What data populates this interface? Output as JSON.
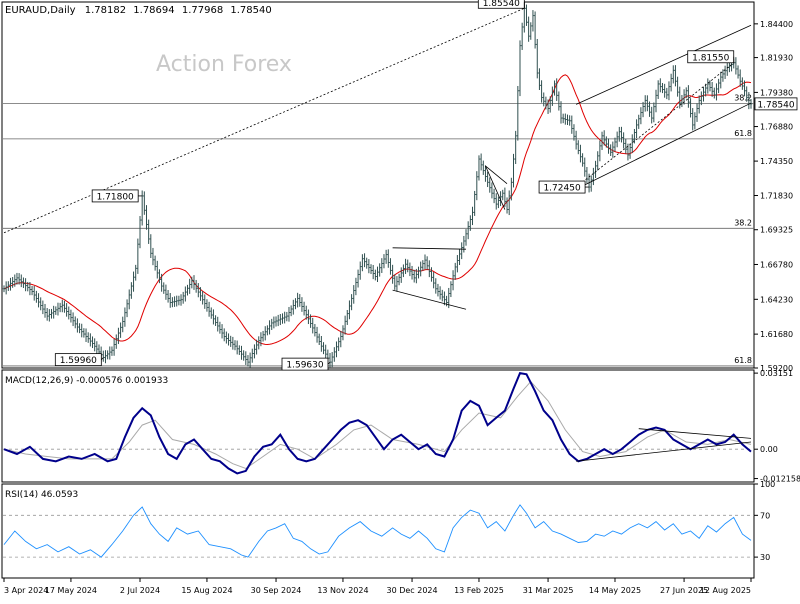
{
  "chart_data": {
    "type": "candlestick",
    "symbol": "EURAUD",
    "timeframe": "Daily",
    "ohlc": {
      "open": "1.78182",
      "high": "1.78694",
      "low": "1.77968",
      "close": "1.78540"
    },
    "watermark": "Action Forex",
    "current_price_label": "1.78540",
    "price_axis": {
      "range": [
        1.592,
        1.86
      ],
      "ticks": [
        "1.84400",
        "1.81930",
        "1.79380",
        "1.76880",
        "1.74350",
        "1.71830",
        "1.69325",
        "1.66780",
        "1.64230",
        "1.61680",
        "1.59200"
      ]
    },
    "dates": [
      "3 Apr 2024",
      "17 May 2024",
      "2 Jul 2024",
      "15 Aug 2024",
      "30 Sep 2024",
      "13 Nov 2024",
      "30 Dec 2024",
      "13 Feb 2025",
      "31 Mar 2025",
      "14 May 2025",
      "27 Jun 2025",
      "12 Aug 2025"
    ],
    "price_points": [
      [
        0,
        1.65
      ],
      [
        6,
        1.658
      ],
      [
        13,
        1.648
      ],
      [
        20,
        1.63
      ],
      [
        27,
        1.638
      ],
      [
        34,
        1.622
      ],
      [
        41,
        1.61
      ],
      [
        46,
        1.5996
      ],
      [
        50,
        1.605
      ],
      [
        55,
        1.626
      ],
      [
        61,
        1.665
      ],
      [
        64,
        1.718
      ],
      [
        68,
        1.676
      ],
      [
        73,
        1.652
      ],
      [
        77,
        1.64
      ],
      [
        82,
        1.642
      ],
      [
        87,
        1.656
      ],
      [
        92,
        1.642
      ],
      [
        97,
        1.628
      ],
      [
        102,
        1.615
      ],
      [
        107,
        1.608
      ],
      [
        113,
        1.5963
      ],
      [
        118,
        1.612
      ],
      [
        124,
        1.625
      ],
      [
        131,
        1.63
      ],
      [
        136,
        1.643
      ],
      [
        141,
        1.628
      ],
      [
        147,
        1.608
      ],
      [
        151,
        1.5963
      ],
      [
        156,
        1.615
      ],
      [
        161,
        1.643
      ],
      [
        166,
        1.672
      ],
      [
        172,
        1.659
      ],
      [
        177,
        1.675
      ],
      [
        181,
        1.652
      ],
      [
        186,
        1.668
      ],
      [
        190,
        1.658
      ],
      [
        195,
        1.671
      ],
      [
        200,
        1.65
      ],
      [
        205,
        1.64
      ],
      [
        209,
        1.666
      ],
      [
        213,
        1.685
      ],
      [
        217,
        1.706
      ],
      [
        220,
        1.745
      ],
      [
        224,
        1.728
      ],
      [
        228,
        1.712
      ],
      [
        231,
        1.72
      ],
      [
        233,
        1.708
      ],
      [
        235,
        1.728
      ],
      [
        237,
        1.762
      ],
      [
        239,
        1.828
      ],
      [
        241,
        1.8554
      ],
      [
        243,
        1.835
      ],
      [
        245,
        1.85
      ],
      [
        247,
        1.808
      ],
      [
        249,
        1.79
      ],
      [
        252,
        1.782
      ],
      [
        255,
        1.8
      ],
      [
        258,
        1.775
      ],
      [
        262,
        1.773
      ],
      [
        265,
        1.756
      ],
      [
        268,
        1.742
      ],
      [
        271,
        1.7245
      ],
      [
        274,
        1.74
      ],
      [
        277,
        1.762
      ],
      [
        281,
        1.75
      ],
      [
        285,
        1.765
      ],
      [
        289,
        1.748
      ],
      [
        293,
        1.77
      ],
      [
        297,
        1.788
      ],
      [
        300,
        1.775
      ],
      [
        303,
        1.8
      ],
      [
        307,
        1.792
      ],
      [
        310,
        1.81
      ],
      [
        313,
        1.786
      ],
      [
        316,
        1.795
      ],
      [
        319,
        1.77
      ],
      [
        322,
        1.788
      ],
      [
        326,
        1.8
      ],
      [
        329,
        1.792
      ],
      [
        332,
        1.805
      ],
      [
        335,
        1.812
      ],
      [
        338,
        1.8155
      ],
      [
        341,
        1.802
      ],
      [
        343,
        1.795
      ],
      [
        345,
        1.7854
      ]
    ],
    "price_labels": [
      {
        "text": "1.85540",
        "i": 241,
        "price": 1.8554,
        "pos": "left-above"
      },
      {
        "text": "1.81550",
        "i": 338,
        "price": 1.8155,
        "pos": "left-above"
      },
      {
        "text": "1.71800",
        "i": 64,
        "price": 1.718,
        "pos": "left"
      },
      {
        "text": "1.72450",
        "i": 271,
        "price": 1.7245,
        "pos": "left"
      },
      {
        "text": "1.59960",
        "i": 46,
        "price": 1.5996,
        "pos": "left-below"
      },
      {
        "text": "1.59630",
        "i": 151,
        "price": 1.5963,
        "pos": "left-below"
      }
    ],
    "fib_levels": [
      {
        "label": "38.2",
        "price": 1.6943
      },
      {
        "label": "61.8",
        "price": 1.7598
      },
      {
        "label": "38.2",
        "price": 1.7857
      },
      {
        "label": "61.8",
        "price": 1.5935
      }
    ],
    "trendlines": [
      {
        "from": [
          0,
          1.691
        ],
        "to": [
          241,
          1.8554
        ],
        "dashed": true
      },
      {
        "from": [
          180,
          1.68
        ],
        "to": [
          214,
          1.679
        ],
        "dashed": false
      },
      {
        "from": [
          180,
          1.649
        ],
        "to": [
          214,
          1.635
        ],
        "dashed": false
      },
      {
        "from": [
          223,
          1.74
        ],
        "to": [
          232,
          1.708
        ],
        "dashed": false
      },
      {
        "from": [
          223,
          1.74
        ],
        "to": [
          233,
          1.727
        ],
        "dashed": false
      },
      {
        "from": [
          265,
          1.785
        ],
        "to": [
          346,
          1.843
        ],
        "dashed": false
      },
      {
        "from": [
          265,
          1.723
        ],
        "to": [
          346,
          1.786
        ],
        "dashed": false
      },
      {
        "from": [
          265,
          1.7245
        ],
        "to": [
          338,
          1.8155
        ],
        "dashed": true
      }
    ],
    "macd": {
      "label": "MACD(12,26,9) -0.000576 0.001933",
      "range": [
        -0.01358,
        0.0328
      ],
      "ticks": [
        "0.03151",
        "0.00",
        "-0.012158"
      ],
      "values": [
        [
          0,
          0.0
        ],
        [
          6,
          -0.002
        ],
        [
          12,
          0.001
        ],
        [
          18,
          -0.004
        ],
        [
          24,
          -0.005
        ],
        [
          30,
          -0.003
        ],
        [
          36,
          -0.004
        ],
        [
          42,
          -0.002
        ],
        [
          48,
          -0.005
        ],
        [
          52,
          -0.004
        ],
        [
          56,
          0.005
        ],
        [
          60,
          0.013
        ],
        [
          64,
          0.017
        ],
        [
          68,
          0.014
        ],
        [
          72,
          0.005
        ],
        [
          76,
          -0.002
        ],
        [
          80,
          -0.004
        ],
        [
          84,
          0.002
        ],
        [
          88,
          0.004
        ],
        [
          92,
          0.0
        ],
        [
          96,
          -0.004
        ],
        [
          100,
          -0.005
        ],
        [
          104,
          -0.008
        ],
        [
          108,
          -0.01
        ],
        [
          112,
          -0.009
        ],
        [
          116,
          -0.003
        ],
        [
          120,
          0.001
        ],
        [
          124,
          0.002
        ],
        [
          128,
          0.006
        ],
        [
          132,
          0.0
        ],
        [
          136,
          -0.004
        ],
        [
          140,
          -0.005
        ],
        [
          144,
          -0.004
        ],
        [
          148,
          0.0
        ],
        [
          152,
          0.004
        ],
        [
          156,
          0.008
        ],
        [
          160,
          0.011
        ],
        [
          164,
          0.012
        ],
        [
          168,
          0.01
        ],
        [
          172,
          0.005
        ],
        [
          176,
          0.0
        ],
        [
          180,
          0.004
        ],
        [
          184,
          0.006
        ],
        [
          188,
          0.003
        ],
        [
          192,
          0.0
        ],
        [
          196,
          0.002
        ],
        [
          200,
          -0.002
        ],
        [
          204,
          -0.003
        ],
        [
          208,
          0.004
        ],
        [
          212,
          0.016
        ],
        [
          216,
          0.02
        ],
        [
          220,
          0.018
        ],
        [
          224,
          0.01
        ],
        [
          228,
          0.013
        ],
        [
          232,
          0.016
        ],
        [
          236,
          0.025
        ],
        [
          239,
          0.03151
        ],
        [
          242,
          0.031
        ],
        [
          246,
          0.024
        ],
        [
          250,
          0.016
        ],
        [
          254,
          0.012
        ],
        [
          258,
          0.004
        ],
        [
          262,
          -0.002
        ],
        [
          266,
          -0.005
        ],
        [
          270,
          -0.004
        ],
        [
          274,
          -0.002
        ],
        [
          278,
          0.0
        ],
        [
          282,
          -0.002
        ],
        [
          286,
          0.0
        ],
        [
          290,
          0.003
        ],
        [
          294,
          0.006
        ],
        [
          298,
          0.008
        ],
        [
          302,
          0.009
        ],
        [
          306,
          0.008
        ],
        [
          310,
          0.004
        ],
        [
          314,
          0.002
        ],
        [
          318,
          0.0
        ],
        [
          322,
          0.002
        ],
        [
          326,
          0.004
        ],
        [
          330,
          0.002
        ],
        [
          334,
          0.003
        ],
        [
          338,
          0.006
        ],
        [
          342,
          0.002
        ],
        [
          346,
          -0.001
        ]
      ],
      "signal": [
        [
          0,
          0.0
        ],
        [
          10,
          -0.002
        ],
        [
          20,
          -0.003
        ],
        [
          30,
          -0.004
        ],
        [
          40,
          -0.004
        ],
        [
          50,
          -0.004
        ],
        [
          58,
          0.003
        ],
        [
          64,
          0.01
        ],
        [
          70,
          0.012
        ],
        [
          78,
          0.004
        ],
        [
          88,
          0.002
        ],
        [
          98,
          -0.002
        ],
        [
          106,
          -0.006
        ],
        [
          112,
          -0.008
        ],
        [
          120,
          -0.003
        ],
        [
          128,
          0.002
        ],
        [
          136,
          0.0
        ],
        [
          144,
          -0.004
        ],
        [
          154,
          0.002
        ],
        [
          162,
          0.008
        ],
        [
          170,
          0.01
        ],
        [
          180,
          0.004
        ],
        [
          192,
          0.002
        ],
        [
          204,
          -0.001
        ],
        [
          212,
          0.008
        ],
        [
          220,
          0.015
        ],
        [
          230,
          0.013
        ],
        [
          238,
          0.022
        ],
        [
          244,
          0.028
        ],
        [
          252,
          0.02
        ],
        [
          260,
          0.008
        ],
        [
          268,
          -0.001
        ],
        [
          276,
          -0.003
        ],
        [
          288,
          -0.001
        ],
        [
          298,
          0.005
        ],
        [
          306,
          0.008
        ],
        [
          316,
          0.003
        ],
        [
          326,
          0.002
        ],
        [
          336,
          0.004
        ],
        [
          346,
          0.002
        ]
      ],
      "lines": [
        {
          "from": [
            265,
            -0.005
          ],
          "to": [
            346,
            0.003
          ]
        },
        {
          "from": [
            294,
            0.0085
          ],
          "to": [
            346,
            0.0045
          ]
        }
      ]
    },
    "rsi": {
      "label": "RSI(14) 46.0593",
      "range": [
        10,
        100
      ],
      "ticks": [
        "100",
        "70",
        "30"
      ],
      "values": [
        [
          0,
          42
        ],
        [
          5,
          55
        ],
        [
          10,
          45
        ],
        [
          15,
          38
        ],
        [
          20,
          42
        ],
        [
          25,
          35
        ],
        [
          30,
          40
        ],
        [
          35,
          33
        ],
        [
          40,
          37
        ],
        [
          45,
          30
        ],
        [
          50,
          42
        ],
        [
          55,
          55
        ],
        [
          60,
          70
        ],
        [
          64,
          78
        ],
        [
          68,
          62
        ],
        [
          72,
          52
        ],
        [
          76,
          45
        ],
        [
          80,
          58
        ],
        [
          85,
          52
        ],
        [
          90,
          55
        ],
        [
          95,
          42
        ],
        [
          100,
          40
        ],
        [
          105,
          38
        ],
        [
          110,
          32
        ],
        [
          113,
          30
        ],
        [
          118,
          45
        ],
        [
          122,
          55
        ],
        [
          126,
          58
        ],
        [
          130,
          62
        ],
        [
          134,
          48
        ],
        [
          138,
          45
        ],
        [
          142,
          38
        ],
        [
          146,
          33
        ],
        [
          150,
          35
        ],
        [
          155,
          50
        ],
        [
          160,
          58
        ],
        [
          165,
          64
        ],
        [
          170,
          55
        ],
        [
          175,
          50
        ],
        [
          180,
          58
        ],
        [
          184,
          52
        ],
        [
          188,
          48
        ],
        [
          192,
          55
        ],
        [
          196,
          48
        ],
        [
          200,
          38
        ],
        [
          204,
          35
        ],
        [
          208,
          58
        ],
        [
          212,
          68
        ],
        [
          216,
          75
        ],
        [
          220,
          72
        ],
        [
          224,
          58
        ],
        [
          228,
          64
        ],
        [
          232,
          55
        ],
        [
          236,
          70
        ],
        [
          239,
          80
        ],
        [
          242,
          72
        ],
        [
          246,
          58
        ],
        [
          250,
          64
        ],
        [
          254,
          55
        ],
        [
          258,
          52
        ],
        [
          262,
          48
        ],
        [
          266,
          44
        ],
        [
          270,
          45
        ],
        [
          274,
          52
        ],
        [
          278,
          50
        ],
        [
          282,
          55
        ],
        [
          286,
          52
        ],
        [
          290,
          58
        ],
        [
          294,
          62
        ],
        [
          298,
          58
        ],
        [
          302,
          64
        ],
        [
          306,
          56
        ],
        [
          310,
          62
        ],
        [
          314,
          52
        ],
        [
          318,
          55
        ],
        [
          322,
          48
        ],
        [
          326,
          60
        ],
        [
          330,
          54
        ],
        [
          334,
          62
        ],
        [
          338,
          68
        ],
        [
          342,
          52
        ],
        [
          346,
          46
        ]
      ]
    }
  }
}
